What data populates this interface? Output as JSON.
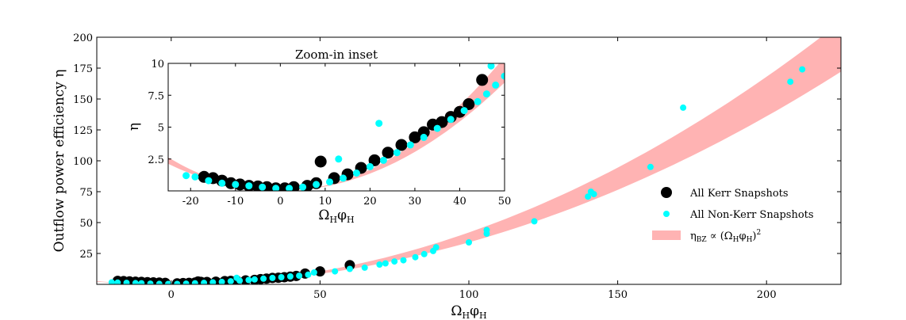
{
  "chart_data": [
    {
      "id": "main",
      "type": "scatter",
      "ylabel": "Outflow power efficiency η",
      "xlabel": "ΩHφH",
      "xlim": [
        -25,
        225
      ],
      "ylim": [
        0,
        200
      ],
      "x_ticks": [
        0,
        50,
        100,
        150,
        200
      ],
      "y_ticks": [
        25,
        50,
        75,
        100,
        125,
        150,
        175,
        200
      ],
      "band": {
        "name": "ηBZ ∝ (ΩHφH)²",
        "color": "#ffb3b3",
        "lower_coef": 0.0034,
        "upper_coef": 0.0042
      },
      "series": [
        {
          "name": "All Kerr Snapshots",
          "color": "#000000",
          "points": [
            [
              -18,
              2.8
            ],
            [
              -16,
              2.6
            ],
            [
              -14,
              2.4
            ],
            [
              -12,
              2.2
            ],
            [
              -10,
              2.0
            ],
            [
              -8,
              1.8
            ],
            [
              -6,
              1.6
            ],
            [
              -4,
              1.4
            ],
            [
              -2,
              1.2
            ],
            [
              2,
              0.8
            ],
            [
              4,
              1.0
            ],
            [
              6,
              1.2
            ],
            [
              8,
              1.5
            ],
            [
              9,
              2.3
            ],
            [
              10,
              2.0
            ],
            [
              12,
              1.9
            ],
            [
              15,
              2.2
            ],
            [
              18,
              2.6
            ],
            [
              20,
              2.8
            ],
            [
              22,
              3.0
            ],
            [
              25,
              3.2
            ],
            [
              28,
              3.6
            ],
            [
              30,
              4.2
            ],
            [
              32,
              4.6
            ],
            [
              34,
              5.2
            ],
            [
              36,
              5.4
            ],
            [
              38,
              5.8
            ],
            [
              40,
              6.2
            ],
            [
              42,
              6.8
            ],
            [
              45,
              8.7
            ],
            [
              50,
              10.5
            ],
            [
              60,
              15.5
            ]
          ]
        },
        {
          "name": "All Non-Kerr Snapshots",
          "color": "#00ffff",
          "points": [
            [
              -20,
              1.6
            ],
            [
              -18,
              1.4
            ],
            [
              -15,
              1.2
            ],
            [
              -12,
              1.0
            ],
            [
              -10,
              0.9
            ],
            [
              -7,
              0.6
            ],
            [
              -4,
              0.4
            ],
            [
              -1,
              0.3
            ],
            [
              2,
              0.3
            ],
            [
              5,
              0.6
            ],
            [
              8,
              0.9
            ],
            [
              11,
              1.2
            ],
            [
              14,
              1.6
            ],
            [
              17,
              2.0
            ],
            [
              20,
              2.5
            ],
            [
              22,
              5.3
            ],
            [
              23,
              3.0
            ],
            [
              26,
              3.5
            ],
            [
              28,
              4.0
            ],
            [
              31,
              4.6
            ],
            [
              34,
              5.2
            ],
            [
              37,
              5.8
            ],
            [
              40,
              6.4
            ],
            [
              43,
              7.0
            ],
            [
              46,
              7.8
            ],
            [
              48,
              9.6
            ],
            [
              55,
              10.5
            ],
            [
              60,
              12.5
            ],
            [
              65,
              13.5
            ],
            [
              70,
              16
            ],
            [
              72,
              17
            ],
            [
              75,
              18.5
            ],
            [
              78,
              19.5
            ],
            [
              82,
              22
            ],
            [
              85,
              24.5
            ],
            [
              88,
              27
            ],
            [
              89,
              30
            ],
            [
              100,
              34
            ],
            [
              106,
              41
            ],
            [
              106,
              44
            ],
            [
              122,
              51
            ],
            [
              140,
              71
            ],
            [
              141,
              75
            ],
            [
              142,
              73
            ],
            [
              161,
              95
            ],
            [
              172,
              143
            ],
            [
              208,
              164
            ],
            [
              212,
              174
            ]
          ]
        }
      ]
    },
    {
      "id": "inset",
      "type": "scatter",
      "title": "Zoom-in inset",
      "ylabel": "η",
      "xlabel": "ΩHφH",
      "xlim": [
        -25,
        50
      ],
      "ylim": [
        0,
        10
      ],
      "x_ticks": [
        -20,
        -10,
        0,
        10,
        20,
        30,
        40,
        50
      ],
      "y_ticks": [
        2.5,
        5.0,
        7.5,
        10.0
      ],
      "band": {
        "name": "ηBZ ∝ (ΩHφH)²",
        "color": "#ffb3b3",
        "lower_coef": 0.0034,
        "upper_coef": 0.0042
      },
      "series": [
        {
          "name": "All Kerr Snapshots",
          "color": "#000000",
          "points": [
            [
              -17,
              1.1
            ],
            [
              -15,
              1.0
            ],
            [
              -13,
              0.8
            ],
            [
              -11,
              0.6
            ],
            [
              -9,
              0.5
            ],
            [
              -7,
              0.4
            ],
            [
              -5,
              0.35
            ],
            [
              -3,
              0.3
            ],
            [
              -1,
              0.2
            ],
            [
              1,
              0.2
            ],
            [
              3,
              0.3
            ],
            [
              6,
              0.4
            ],
            [
              8,
              0.6
            ],
            [
              9,
              2.3
            ],
            [
              12,
              1.0
            ],
            [
              15,
              1.3
            ],
            [
              18,
              1.8
            ],
            [
              21,
              2.4
            ],
            [
              24,
              3.0
            ],
            [
              27,
              3.6
            ],
            [
              30,
              4.2
            ],
            [
              32,
              4.6
            ],
            [
              34,
              5.2
            ],
            [
              36,
              5.4
            ],
            [
              38,
              5.8
            ],
            [
              40,
              6.2
            ],
            [
              42,
              6.8
            ],
            [
              45,
              8.7
            ]
          ]
        },
        {
          "name": "All Non-Kerr Snapshots",
          "color": "#00ffff",
          "points": [
            [
              -21,
              1.2
            ],
            [
              -19,
              1.1
            ],
            [
              -16,
              0.8
            ],
            [
              -13,
              0.6
            ],
            [
              -10,
              0.5
            ],
            [
              -7,
              0.4
            ],
            [
              -4,
              0.3
            ],
            [
              -1,
              0.2
            ],
            [
              2,
              0.2
            ],
            [
              5,
              0.3
            ],
            [
              8,
              0.5
            ],
            [
              11,
              0.7
            ],
            [
              13,
              2.5
            ],
            [
              14,
              1.0
            ],
            [
              17,
              1.4
            ],
            [
              20,
              1.9
            ],
            [
              22,
              5.3
            ],
            [
              23,
              2.4
            ],
            [
              26,
              3.0
            ],
            [
              29,
              3.6
            ],
            [
              32,
              4.2
            ],
            [
              35,
              4.9
            ],
            [
              38,
              5.6
            ],
            [
              41,
              6.3
            ],
            [
              44,
              7.0
            ],
            [
              46,
              7.6
            ],
            [
              47,
              9.8
            ],
            [
              48,
              8.3
            ],
            [
              50,
              9.0
            ]
          ]
        }
      ]
    }
  ],
  "legend": {
    "items": [
      {
        "label": "All Kerr Snapshots",
        "marker": "circle",
        "color": "#000000"
      },
      {
        "label": "All Non-Kerr Snapshots",
        "marker": "circle",
        "color": "#00ffff"
      },
      {
        "label": "ηBZ ∝ (ΩHφH)²",
        "marker": "rect",
        "color": "#ffb3b3"
      }
    ]
  }
}
